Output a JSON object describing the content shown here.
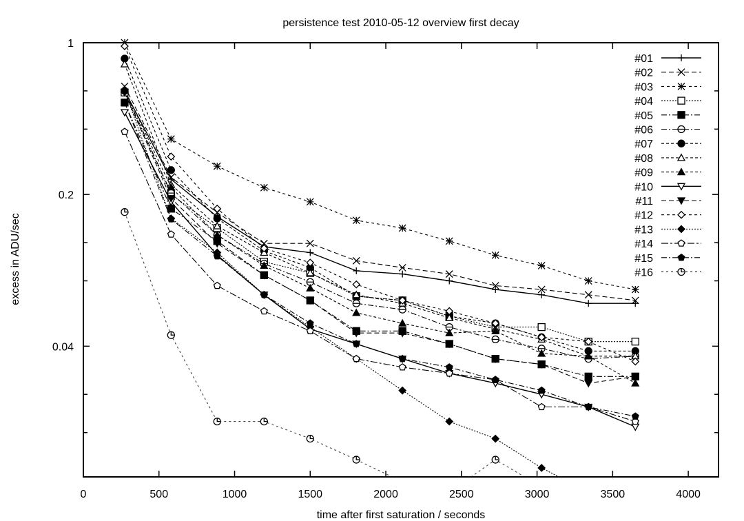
{
  "chart_data": {
    "type": "line",
    "title": "persistence test 2010-05-12 overview first decay",
    "xlabel": "time  after first saturation / seconds",
    "ylabel": "excess in ADU/sec",
    "xlim": [
      0,
      4200
    ],
    "ylim": [
      0.01,
      1
    ],
    "yscale": "log",
    "grid": false,
    "legend_position": "top-right",
    "xticks": [
      0,
      500,
      1000,
      1500,
      2000,
      2500,
      3000,
      3500,
      4000
    ],
    "xtick_labels": [
      "0",
      "500",
      "1000",
      "1500",
      "2000",
      "2500",
      "3000",
      "3500",
      "4000"
    ],
    "yticks": [
      1,
      0.2,
      0.04
    ],
    "ytick_labels": [
      "1",
      "0.2",
      "0.04"
    ],
    "x": [
      273,
      580,
      885,
      1195,
      1500,
      1805,
      2110,
      2420,
      2725,
      3030,
      3340,
      3650
    ],
    "series": [
      {
        "name": "#01",
        "marker": "plus",
        "dash": "solid",
        "values": [
          0.6,
          0.235,
          0.158,
          0.115,
          0.108,
          0.089,
          0.086,
          0.08,
          0.073,
          0.069,
          0.063,
          0.063
        ]
      },
      {
        "name": "#02",
        "marker": "cross",
        "dash": "dashed",
        "values": [
          0.63,
          0.24,
          0.165,
          0.119,
          0.119,
          0.099,
          0.092,
          0.086,
          0.076,
          0.073,
          0.069,
          0.065
        ]
      },
      {
        "name": "#03",
        "marker": "star",
        "dash": "dotdash-fine",
        "values": [
          1.0,
          0.36,
          0.27,
          0.215,
          0.185,
          0.152,
          0.14,
          0.122,
          0.105,
          0.094,
          0.08,
          0.073
        ]
      },
      {
        "name": "#04",
        "marker": "open-square",
        "dash": "dotted",
        "values": [
          0.59,
          0.2,
          0.14,
          0.098,
          0.087,
          0.068,
          0.065,
          0.055,
          0.049,
          0.049,
          0.042,
          0.042
        ]
      },
      {
        "name": "#05",
        "marker": "filled-square",
        "dash": "dashdot",
        "values": [
          0.53,
          0.172,
          0.122,
          0.085,
          0.065,
          0.047,
          0.047,
          0.041,
          0.035,
          0.033,
          0.029,
          0.029
        ]
      },
      {
        "name": "#06",
        "marker": "open-circle",
        "dash": "dashdot",
        "values": [
          0.6,
          0.203,
          0.13,
          0.096,
          0.079,
          0.063,
          0.059,
          0.049,
          0.043,
          0.039,
          0.035,
          0.036
        ]
      },
      {
        "name": "#07",
        "marker": "filled-circle",
        "dash": "dashed-short",
        "values": [
          0.845,
          0.259,
          0.155,
          0.11,
          0.092,
          0.068,
          0.065,
          0.055,
          0.051,
          0.044,
          0.038,
          0.038
        ]
      },
      {
        "name": "#08",
        "marker": "open-triangle",
        "dash": "dashed-short",
        "values": [
          0.797,
          0.222,
          0.143,
          0.108,
          0.087,
          0.069,
          0.063,
          0.054,
          0.048,
          0.043,
          0.036,
          0.036
        ]
      },
      {
        "name": "#09",
        "marker": "filled-triangle",
        "dash": "dashed-short",
        "values": [
          0.61,
          0.216,
          0.13,
          0.094,
          0.074,
          0.057,
          0.051,
          0.046,
          0.047,
          0.037,
          0.036,
          0.027
        ]
      },
      {
        "name": "#10",
        "marker": "open-triangle-down",
        "dash": "solid",
        "values": [
          0.478,
          0.185,
          0.105,
          0.069,
          0.048,
          0.041,
          0.035,
          0.03,
          0.027,
          0.024,
          0.021,
          0.017
        ]
      },
      {
        "name": "#11",
        "marker": "filled-triangle-down",
        "dash": "dashed",
        "values": [
          0.59,
          0.192,
          0.119,
          0.085,
          0.065,
          0.046,
          0.046,
          0.041,
          0.035,
          0.033,
          0.027,
          0.029
        ]
      },
      {
        "name": "#12",
        "marker": "open-diamond",
        "dash": "dotdash-fine",
        "values": [
          0.964,
          0.299,
          0.172,
          0.113,
          0.097,
          0.077,
          0.065,
          0.058,
          0.051,
          0.044,
          0.042,
          0.034
        ]
      },
      {
        "name": "#13",
        "marker": "filled-diamond",
        "dash": "dotted",
        "values": [
          0.6,
          0.155,
          0.108,
          0.069,
          0.049,
          0.035,
          0.025,
          0.018,
          0.015,
          0.011,
          0.0085,
          null
        ]
      },
      {
        "name": "#14",
        "marker": "open-pentagon",
        "dash": "dashdot-long",
        "values": [
          0.389,
          0.131,
          0.076,
          0.058,
          0.047,
          0.035,
          0.032,
          0.03,
          0.028,
          0.021,
          0.021,
          0.018
        ]
      },
      {
        "name": "#15",
        "marker": "filled-pentagon",
        "dash": "dashdot",
        "values": [
          0.53,
          0.154,
          0.104,
          0.069,
          0.051,
          0.041,
          0.035,
          0.032,
          0.028,
          0.025,
          0.021,
          0.019
        ]
      },
      {
        "name": "#16",
        "marker": "open-circle-clock",
        "dash": "dashed-light",
        "values": [
          0.166,
          0.045,
          0.018,
          0.018,
          0.015,
          0.012,
          0.0095,
          0.0085,
          0.012,
          0.009,
          0.008,
          0.007
        ]
      }
    ]
  }
}
